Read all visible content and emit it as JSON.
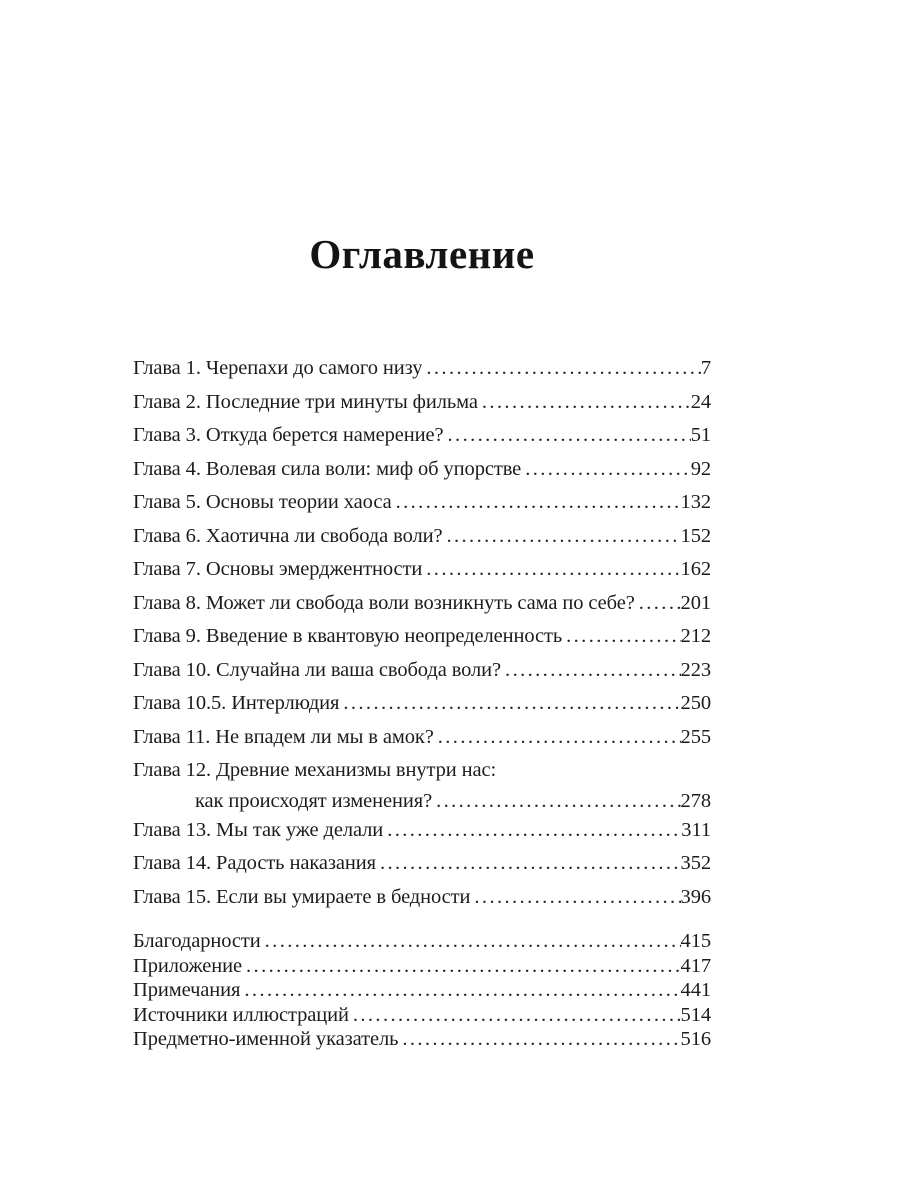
{
  "page": {
    "title": "Оглавление"
  },
  "colors": {
    "paper": "#ffffff",
    "ink": "#1c1c1c"
  },
  "toc": {
    "chapters": [
      {
        "label": "Глава 1. Черепахи до самого низу",
        "page": "7"
      },
      {
        "label": "Глава 2. Последние три минуты фильма",
        "page": "24"
      },
      {
        "label": "Глава 3. Откуда берется намерение?",
        "page": "51"
      },
      {
        "label": "Глава 4. Волевая сила воли: миф об упорстве",
        "page": "92"
      },
      {
        "label": "Глава 5. Основы теории хаоса",
        "page": "132"
      },
      {
        "label": "Глава 6. Хаотична ли свобода воли?",
        "page": "152"
      },
      {
        "label": "Глава 7. Основы эмерджентности",
        "page": "162"
      },
      {
        "label": "Глава 8. Может ли свобода воли возникнуть сама по себе?",
        "page": "201"
      },
      {
        "label": "Глава 9. Введение в квантовую неопределенность",
        "page": "212"
      },
      {
        "label": "Глава 10. Случайна ли ваша свобода воли?",
        "page": "223"
      },
      {
        "label": "Глава 10.5. Интерлюдия",
        "page": "250"
      },
      {
        "label": "Глава 11. Не впадем ли мы в амок?",
        "page": "255"
      },
      {
        "label": "Глава 12. Древние механизмы внутри нас:",
        "label2": "как происходят изменения?",
        "page": "278"
      },
      {
        "label": "Глава 13. Мы так уже делали",
        "page": "311"
      },
      {
        "label": "Глава 14. Радость наказания",
        "page": "352"
      },
      {
        "label": "Глава 15. Если вы умираете в бедности",
        "page": "396"
      }
    ],
    "backmatter": [
      {
        "label": "Благодарности",
        "page": "415"
      },
      {
        "label": "Приложение",
        "page": "417"
      },
      {
        "label": "Примечания",
        "page": "441"
      },
      {
        "label": "Источники иллюстраций",
        "page": "514"
      },
      {
        "label": "Предметно-именной указатель",
        "page": "516"
      }
    ]
  }
}
